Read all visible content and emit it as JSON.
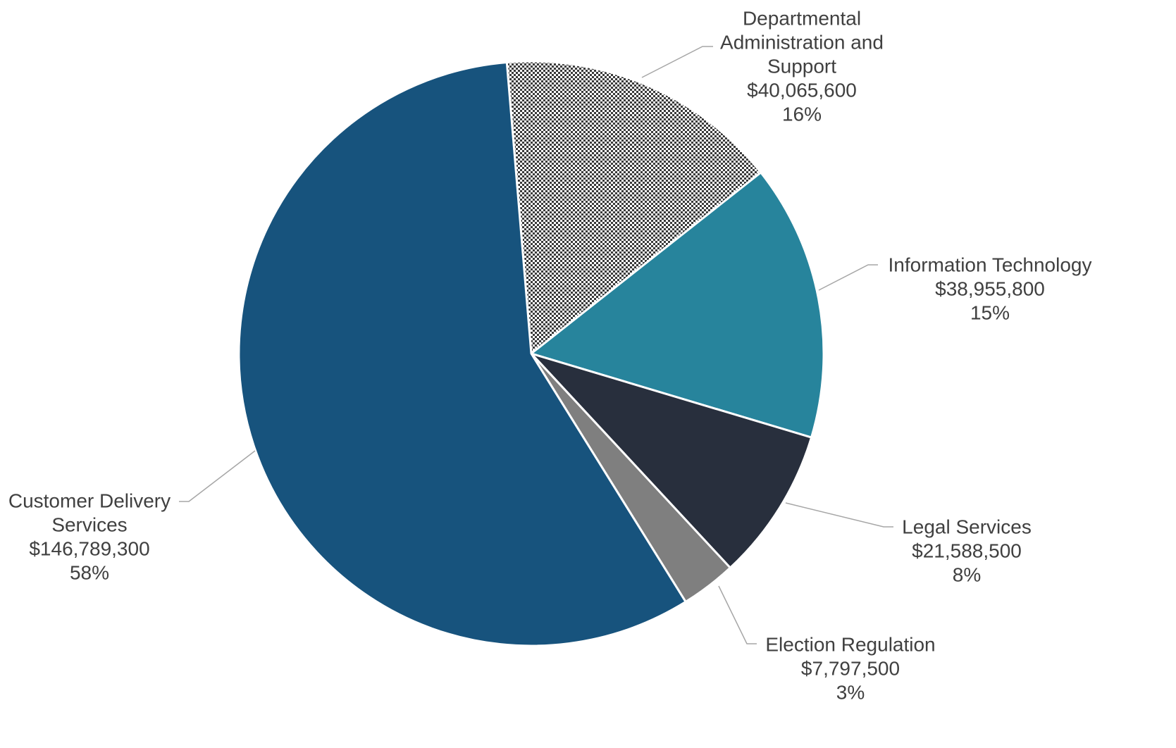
{
  "chart_data": {
    "type": "pie",
    "title": "",
    "legend": "none",
    "slices": [
      {
        "name": "Departmental Administration and Support",
        "label_lines": [
          "Departmental",
          "Administration and",
          "Support"
        ],
        "amount": "$40,065,600",
        "percent": "16%",
        "value": 40065600,
        "color": "#c9c9c9",
        "pattern": "checker"
      },
      {
        "name": "Information Technology",
        "label_lines": [
          "Information Technology"
        ],
        "amount": "$38,955,800",
        "percent": "15%",
        "value": 38955800,
        "color": "#27849c"
      },
      {
        "name": "Legal Services",
        "label_lines": [
          "Legal Services"
        ],
        "amount": "$21,588,500",
        "percent": "8%",
        "value": 21588500,
        "color": "#282f3d"
      },
      {
        "name": "Election Regulation",
        "label_lines": [
          "Election Regulation"
        ],
        "amount": "$7,797,500",
        "percent": "3%",
        "value": 7797500,
        "color": "#7f7f7f"
      },
      {
        "name": "Customer Delivery Services",
        "label_lines": [
          "Customer Delivery",
          "Services"
        ],
        "amount": "$146,789,300",
        "percent": "58%",
        "value": 146789300,
        "color": "#17537d"
      }
    ]
  }
}
